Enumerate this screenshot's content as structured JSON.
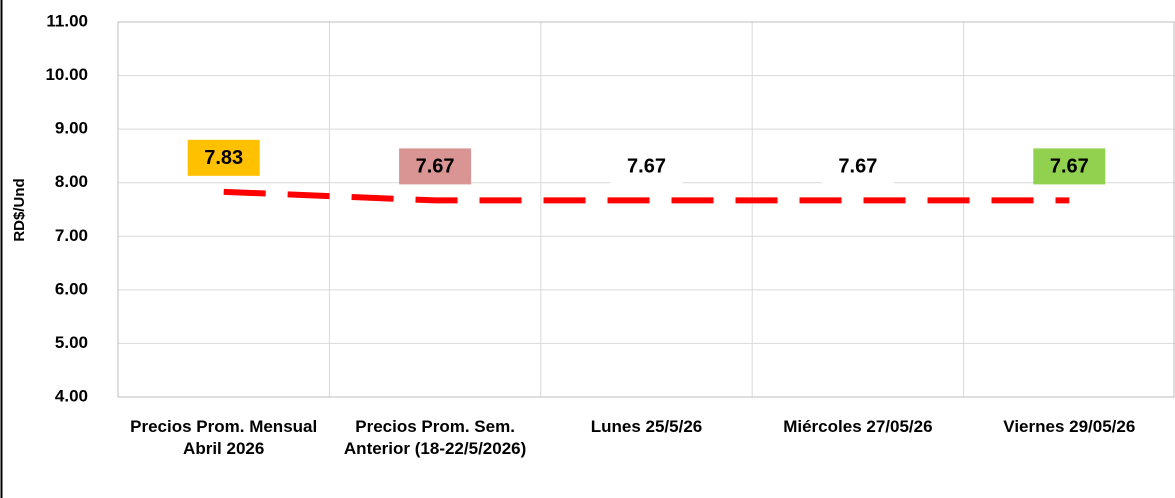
{
  "chart_data": {
    "type": "line",
    "y_label": "RD$/Und",
    "categories": [
      "Precios Prom. Mensual Abril 2026",
      "Precios Prom. Sem. Anterior (18-22/5/2026)",
      "Lunes 25/5/26",
      "Miércoles 27/05/26",
      "Viernes  29/05/26"
    ],
    "series": [
      {
        "values": [
          7.83,
          7.67,
          7.67,
          7.67,
          7.67
        ],
        "color": "#ff0000"
      }
    ],
    "label_colors": [
      "#ffc000",
      "#d99594",
      "#ffffff",
      "#ffffff",
      "#92d050"
    ],
    "ylim": [
      4,
      11
    ],
    "yticks": [
      {
        "value": 4,
        "label": "4.00"
      },
      {
        "value": 5,
        "label": "5.00"
      },
      {
        "value": 6,
        "label": "6.00"
      },
      {
        "value": 7,
        "label": "7.00"
      },
      {
        "value": 8,
        "label": "8.00"
      },
      {
        "value": 9,
        "label": "9.00"
      },
      {
        "value": 10,
        "label": "10.00"
      },
      {
        "value": 11,
        "label": "11.00"
      }
    ],
    "grid": true
  }
}
